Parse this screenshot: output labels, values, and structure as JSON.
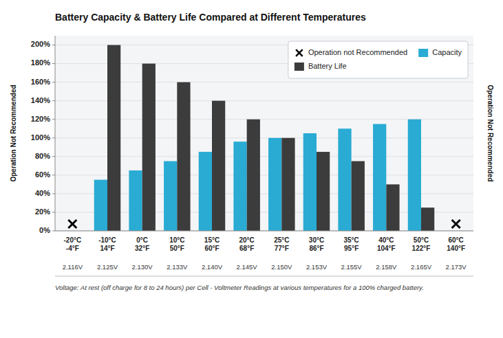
{
  "chart_data": {
    "type": "bar",
    "title": "Battery Capacity & Battery Life Compared at Different Temperatures",
    "y_label": "Operation Not Recommended",
    "y_label_right": "Operation Not Recommended",
    "categories": [
      "-20°C\n-4°F",
      "-10°C\n14°F",
      "0°C\n32°F",
      "10°C\n50°F",
      "15°C\n60°F",
      "20°C\n68°F",
      "25°C\n77°F",
      "30°C\n86°F",
      "35°C\n95°F",
      "40°C\n104°F",
      "50°C\n122°F",
      "60°C\n140°F"
    ],
    "series": [
      {
        "name": "Operation not Recommended",
        "type": "scatter",
        "marker": "x",
        "color": "#000000",
        "values": [
          0,
          null,
          null,
          null,
          null,
          null,
          null,
          null,
          null,
          null,
          null,
          0
        ]
      },
      {
        "name": "Capacity",
        "type": "bar",
        "color": "#29ABD4",
        "values": [
          null,
          55,
          65,
          75,
          85,
          96,
          100,
          105,
          110,
          115,
          120,
          null
        ]
      },
      {
        "name": "Battery Life",
        "type": "bar",
        "color": "#3C3C3C",
        "values": [
          null,
          200,
          180,
          160,
          140,
          120,
          100,
          85,
          75,
          50,
          25,
          null
        ]
      }
    ],
    "voltages": [
      "2.116V",
      "2.125V",
      "2.130V",
      "2.133V",
      "2.140V",
      "2.145V",
      "2.150V",
      "2.153V",
      "2.155V",
      "2.158V",
      "2.165V",
      "2.173V"
    ],
    "note": "Voltage:  At rest (off charge for 8 to 24 hours) per Cell - Voltmeter Readings at various temperatures for a 100% charged battery.",
    "ylim": [
      0,
      210
    ],
    "yticks": [
      {
        "value": 0,
        "label": "0%"
      },
      {
        "value": 20,
        "label": "20%"
      },
      {
        "value": 40,
        "label": "40%"
      },
      {
        "value": 60,
        "label": "60%"
      },
      {
        "value": 80,
        "label": "80%"
      },
      {
        "value": 100,
        "label": "100%"
      },
      {
        "value": 120,
        "label": "120%"
      },
      {
        "value": 140,
        "label": "140%"
      },
      {
        "value": 160,
        "label": "160%"
      },
      {
        "value": 180,
        "label": "180%"
      },
      {
        "value": 200,
        "label": "200%"
      }
    ],
    "grid": true,
    "legend": "upper right"
  }
}
